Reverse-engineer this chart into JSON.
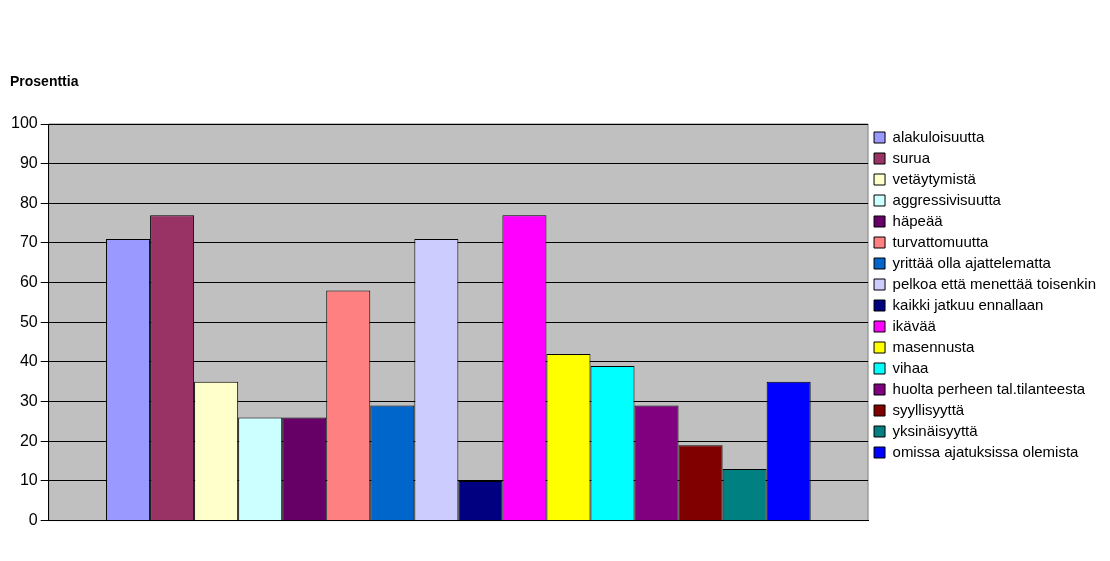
{
  "chart_data": {
    "type": "bar",
    "ylabel": "Prosenttia",
    "categories": [
      null
    ],
    "series": [
      {
        "name": "alakuloisuutta",
        "color": "#9999ff",
        "values": [
          71
        ]
      },
      {
        "name": "surua",
        "color": "#993366",
        "values": [
          77
        ]
      },
      {
        "name": "vetäytymistä",
        "color": "#ffffcc",
        "values": [
          35
        ]
      },
      {
        "name": "aggressivisuutta",
        "color": "#ccffff",
        "values": [
          26
        ]
      },
      {
        "name": "häpeää",
        "color": "#660066",
        "values": [
          26
        ]
      },
      {
        "name": "turvattomuutta",
        "color": "#ff8080",
        "values": [
          58
        ]
      },
      {
        "name": "yrittää olla ajattelematta",
        "color": "#0066cc",
        "values": [
          29
        ]
      },
      {
        "name": "pelkoa että menettää toisenkin",
        "color": "#ccccff",
        "values": [
          71
        ]
      },
      {
        "name": "kaikki jatkuu ennallaan",
        "color": "#000080",
        "values": [
          10
        ]
      },
      {
        "name": "ikävää",
        "color": "#ff00ff",
        "values": [
          77
        ]
      },
      {
        "name": "masennusta",
        "color": "#ffff00",
        "values": [
          42
        ]
      },
      {
        "name": "vihaa",
        "color": "#00ffff",
        "values": [
          39
        ]
      },
      {
        "name": "huolta perheen tal.tilanteesta",
        "color": "#800080",
        "values": [
          29
        ]
      },
      {
        "name": "syyllisyyttä",
        "color": "#800000",
        "values": [
          19
        ]
      },
      {
        "name": "yksinäisyyttä",
        "color": "#008080",
        "values": [
          13
        ]
      },
      {
        "name": "omissa ajatuksissa olemista",
        "color": "#0000ff",
        "values": [
          35
        ]
      }
    ],
    "ylim": [
      0,
      100
    ],
    "yticks": [
      0,
      10,
      20,
      30,
      40,
      50,
      60,
      70,
      80,
      90,
      100
    ],
    "grid": "y",
    "legend": "right"
  }
}
